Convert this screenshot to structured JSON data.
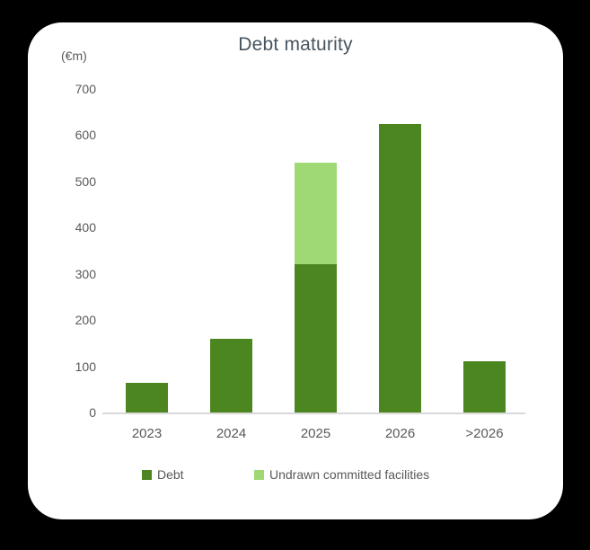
{
  "window": {
    "background_color": "#000000",
    "card_background_color": "#ffffff"
  },
  "chart_data": {
    "type": "bar",
    "stacked": true,
    "title": "Debt maturity",
    "axis_unit_label": "(€m)",
    "categories": [
      "2023",
      "2024",
      "2025",
      "2026",
      ">2026"
    ],
    "series": [
      {
        "name": "Debt",
        "color": "#4c8620",
        "values": [
          65,
          160,
          320,
          625,
          110
        ]
      },
      {
        "name": "Undrawn committed facilities",
        "color": "#9ed973",
        "values": [
          0,
          0,
          220,
          0,
          0
        ]
      }
    ],
    "ylim": [
      0,
      700
    ],
    "yticks": [
      0,
      100,
      200,
      300,
      400,
      500,
      600,
      700
    ],
    "grid": false,
    "legend_position": "bottom",
    "title_color": "#46555f",
    "axis_text_color": "#595959",
    "axis_line_color": "#d9d9d9"
  }
}
